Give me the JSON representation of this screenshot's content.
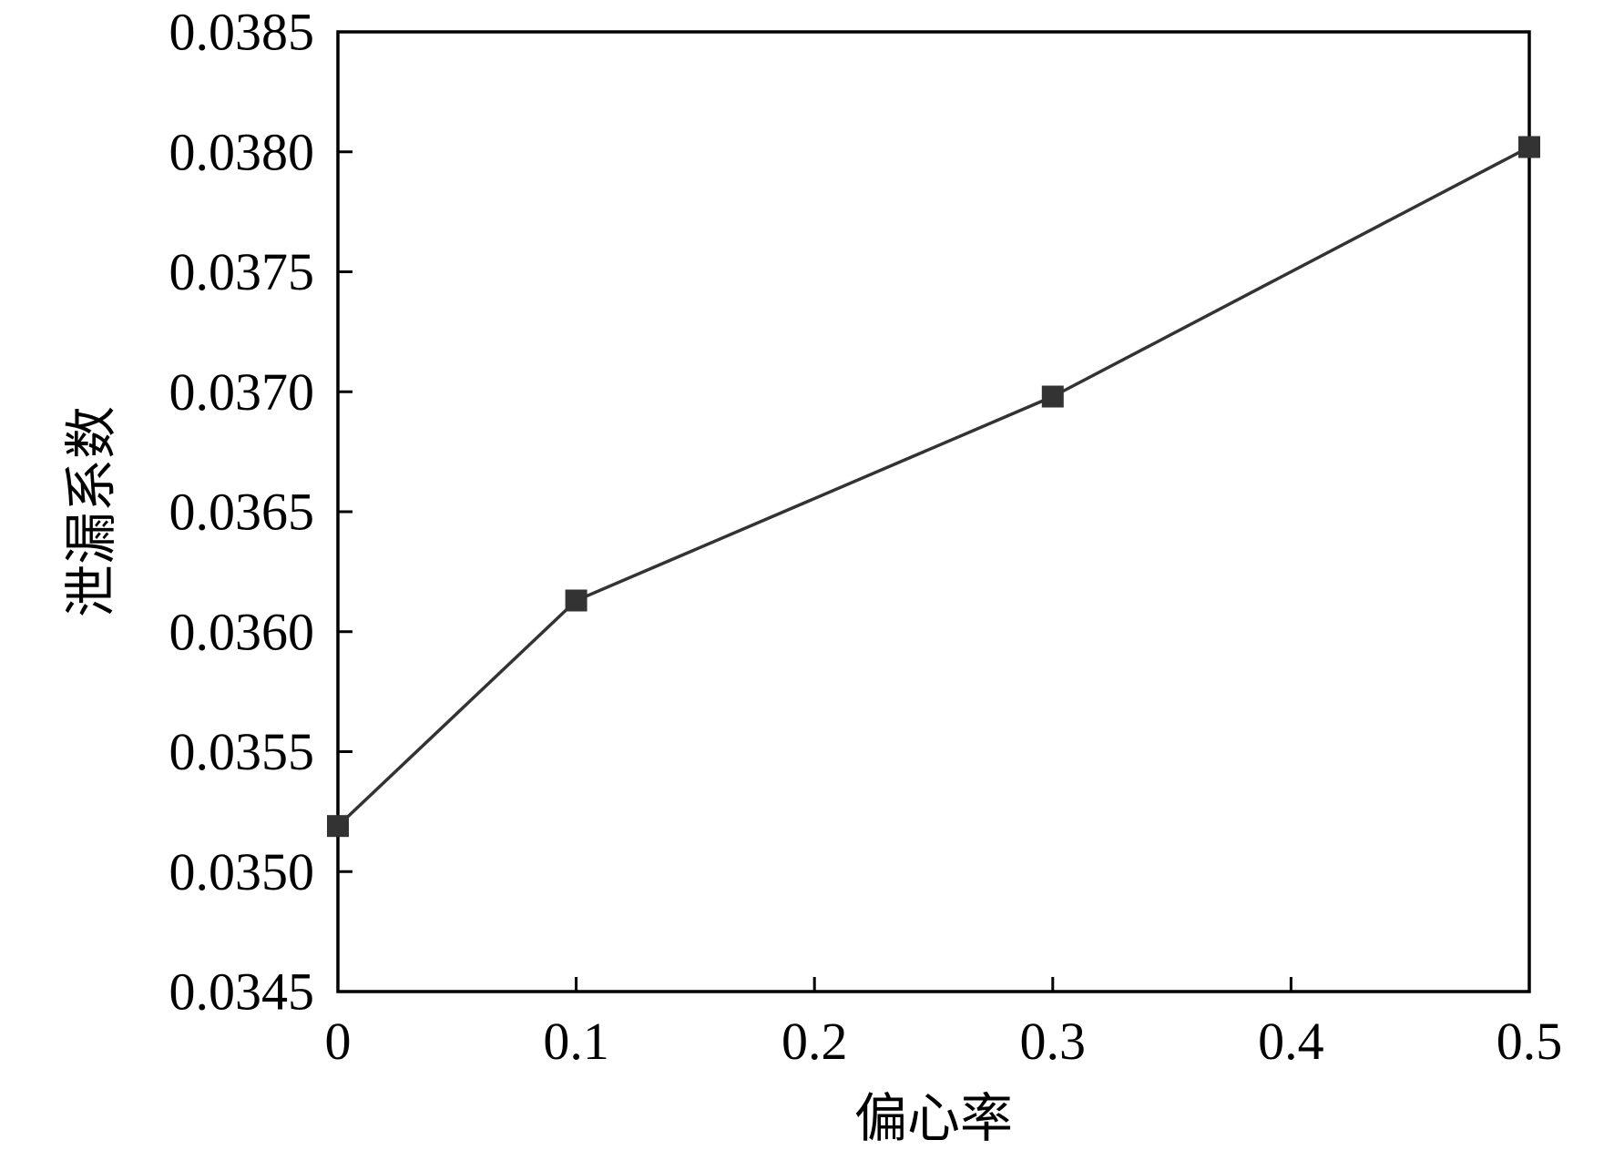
{
  "chart_data": {
    "type": "line",
    "title": "",
    "xlabel": "偏心率",
    "ylabel": "泄漏系数",
    "xlim": [
      0,
      0.5
    ],
    "ylim": [
      0.0345,
      0.0385
    ],
    "x_ticks": [
      "0",
      "0.1",
      "0.2",
      "0.3",
      "0.4",
      "0.5"
    ],
    "x_tick_values": [
      0,
      0.1,
      0.2,
      0.3,
      0.4,
      0.5
    ],
    "y_ticks": [
      "0.0345",
      "0.0350",
      "0.0355",
      "0.0360",
      "0.0365",
      "0.0370",
      "0.0375",
      "0.0380",
      "0.0385"
    ],
    "y_tick_values": [
      0.0345,
      0.035,
      0.0355,
      0.036,
      0.0365,
      0.037,
      0.0375,
      0.038,
      0.0385
    ],
    "grid": false,
    "series": [
      {
        "x": [
          0,
          0.1,
          0.3,
          0.5
        ],
        "y": [
          0.03519,
          0.03613,
          0.03698,
          0.03802
        ],
        "marker": "square",
        "color": "#333333"
      }
    ]
  }
}
